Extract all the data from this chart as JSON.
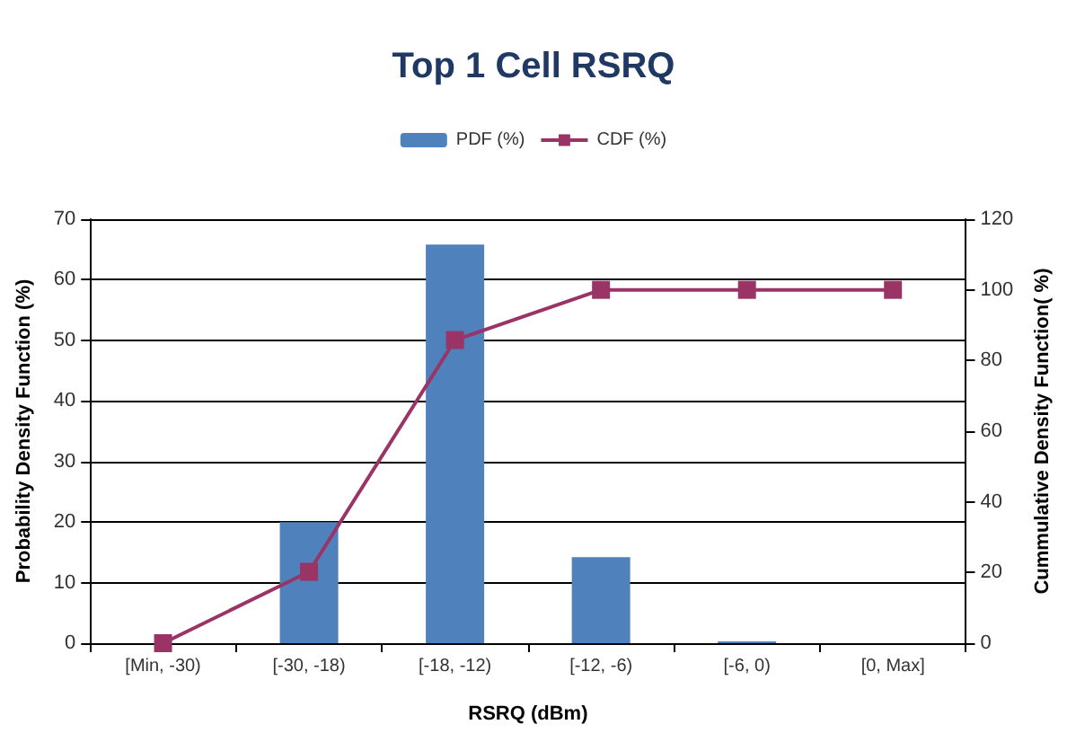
{
  "chart_data": {
    "type": "bar",
    "title": "Top 1 Cell RSRQ",
    "xlabel": "RSRQ (dBm)",
    "ylabel": "Probability Density Function (%)",
    "y2label": "Cummulative Density Function( %)",
    "categories": [
      "[Min, -30)",
      "[-30, -18)",
      "[-18, -12)",
      "[-12, -6)",
      "[-6, 0)",
      "[0, Max]"
    ],
    "series": [
      {
        "name": "PDF (%)",
        "color": "#4f81bd",
        "values": [
          0,
          20,
          65.8,
          14.2,
          0.3,
          0
        ]
      },
      {
        "name": "CDF (%)",
        "type": "line",
        "axis": "y2",
        "color": "#9b3466",
        "marker": "square",
        "values": [
          0,
          20.2,
          85.8,
          100,
          100,
          100
        ]
      }
    ],
    "ylim": [
      0,
      70
    ],
    "yticks": [
      0,
      10,
      20,
      30,
      40,
      50,
      60,
      70
    ],
    "y2lim": [
      0,
      120
    ],
    "y2ticks": [
      0,
      20,
      40,
      60,
      80,
      100,
      120
    ],
    "grid": "y",
    "legend": "top"
  }
}
